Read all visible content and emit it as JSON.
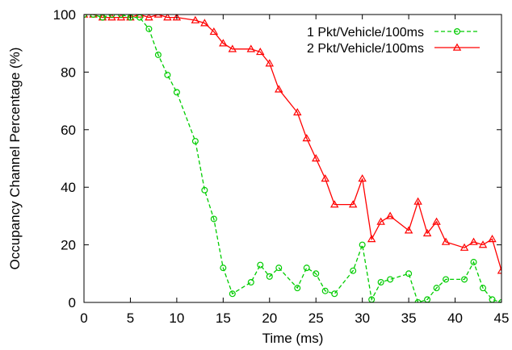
{
  "chart_data": {
    "type": "line",
    "title": "",
    "xlabel": "Time (ms)",
    "ylabel": "Occupancy Channel Percentage (%)",
    "xlim": [
      0,
      45
    ],
    "ylim": [
      0,
      100
    ],
    "xticks": [
      0,
      5,
      10,
      15,
      20,
      25,
      30,
      35,
      40,
      45
    ],
    "yticks": [
      0,
      20,
      40,
      60,
      80,
      100
    ],
    "grid": false,
    "legend_position": "top-right",
    "series": [
      {
        "name": "1 Pkt/Vehicle/100ms",
        "color": "#00cc00",
        "line_style": "dashed",
        "marker": "circle",
        "points": [
          [
            0,
            100
          ],
          [
            1,
            100
          ],
          [
            2,
            99
          ],
          [
            3,
            100
          ],
          [
            4,
            100
          ],
          [
            5,
            99
          ],
          [
            6,
            99
          ],
          [
            7,
            95
          ],
          [
            8,
            86
          ],
          [
            9,
            79
          ],
          [
            10,
            73
          ],
          [
            12,
            56
          ],
          [
            13,
            39
          ],
          [
            14,
            29
          ],
          [
            15,
            12
          ],
          [
            16,
            3
          ],
          [
            18,
            7
          ],
          [
            19,
            13
          ],
          [
            20,
            9
          ],
          [
            21,
            12
          ],
          [
            23,
            5
          ],
          [
            24,
            12
          ],
          [
            25,
            10
          ],
          [
            26,
            4
          ],
          [
            27,
            3
          ],
          [
            29,
            11
          ],
          [
            30,
            20
          ],
          [
            31,
            1
          ],
          [
            32,
            7
          ],
          [
            33,
            8
          ],
          [
            35,
            10
          ],
          [
            36,
            0
          ],
          [
            37,
            1
          ],
          [
            38,
            5
          ],
          [
            39,
            8
          ],
          [
            41,
            8
          ],
          [
            42,
            14
          ],
          [
            43,
            5
          ],
          [
            44,
            1
          ],
          [
            45,
            0
          ]
        ]
      },
      {
        "name": "2 Pkt/Vehicle/100ms",
        "color": "#ff0000",
        "line_style": "solid",
        "marker": "triangle",
        "points": [
          [
            0,
            100
          ],
          [
            1,
            100
          ],
          [
            2,
            99
          ],
          [
            3,
            99
          ],
          [
            4,
            99
          ],
          [
            5,
            99
          ],
          [
            6,
            100
          ],
          [
            7,
            99
          ],
          [
            8,
            100
          ],
          [
            9,
            99
          ],
          [
            10,
            99
          ],
          [
            12,
            98
          ],
          [
            13,
            97
          ],
          [
            14,
            94
          ],
          [
            15,
            90
          ],
          [
            16,
            88
          ],
          [
            18,
            88
          ],
          [
            19,
            87
          ],
          [
            20,
            83
          ],
          [
            21,
            74
          ],
          [
            23,
            66
          ],
          [
            24,
            57
          ],
          [
            25,
            50
          ],
          [
            26,
            43
          ],
          [
            27,
            34
          ],
          [
            29,
            34
          ],
          [
            30,
            43
          ],
          [
            31,
            22
          ],
          [
            32,
            28
          ],
          [
            33,
            30
          ],
          [
            35,
            25
          ],
          [
            36,
            35
          ],
          [
            37,
            24
          ],
          [
            38,
            28
          ],
          [
            39,
            21
          ],
          [
            41,
            19
          ],
          [
            42,
            21
          ],
          [
            43,
            20
          ],
          [
            44,
            22
          ],
          [
            45,
            11
          ]
        ]
      }
    ]
  }
}
